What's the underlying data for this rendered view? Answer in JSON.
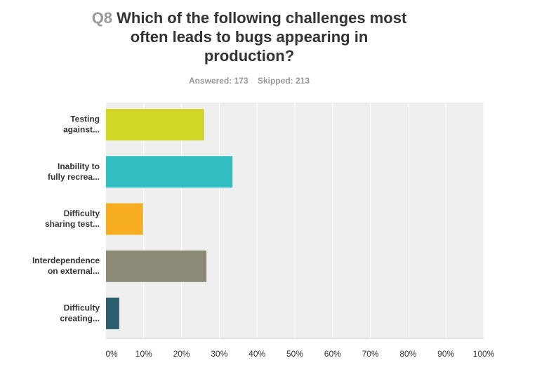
{
  "question": {
    "number": "Q8",
    "text_lines": [
      "Which of the following challenges most",
      "often leads to bugs appearing in",
      "production?"
    ]
  },
  "stats": {
    "answered_label": "Answered: 173",
    "skipped_label": "Skipped: 213"
  },
  "chart_data": {
    "type": "bar",
    "orientation": "horizontal",
    "title": "Which of the following challenges most often leads to bugs appearing in production?",
    "categories": [
      [
        "Testing",
        "against..."
      ],
      [
        "Inability to",
        "fully recrea..."
      ],
      [
        "Difficulty",
        "sharing test..."
      ],
      [
        "Interdependence",
        "on external..."
      ],
      [
        "Difficulty",
        "creating..."
      ]
    ],
    "values": [
      26.0,
      33.5,
      9.8,
      26.6,
      3.5
    ],
    "colors": [
      "#d1d627",
      "#33bfc1",
      "#f7af21",
      "#8a8a77",
      "#2b5f6e"
    ],
    "xlim": [
      0,
      100
    ],
    "xticks": [
      0,
      10,
      20,
      30,
      40,
      50,
      60,
      70,
      80,
      90,
      100
    ],
    "xtick_labels": [
      "0%",
      "10%",
      "20%",
      "30%",
      "40%",
      "50%",
      "60%",
      "70%",
      "80%",
      "90%",
      "100%"
    ],
    "grid": true,
    "plot_background": "#efefef",
    "grid_color": "#ffffff"
  }
}
